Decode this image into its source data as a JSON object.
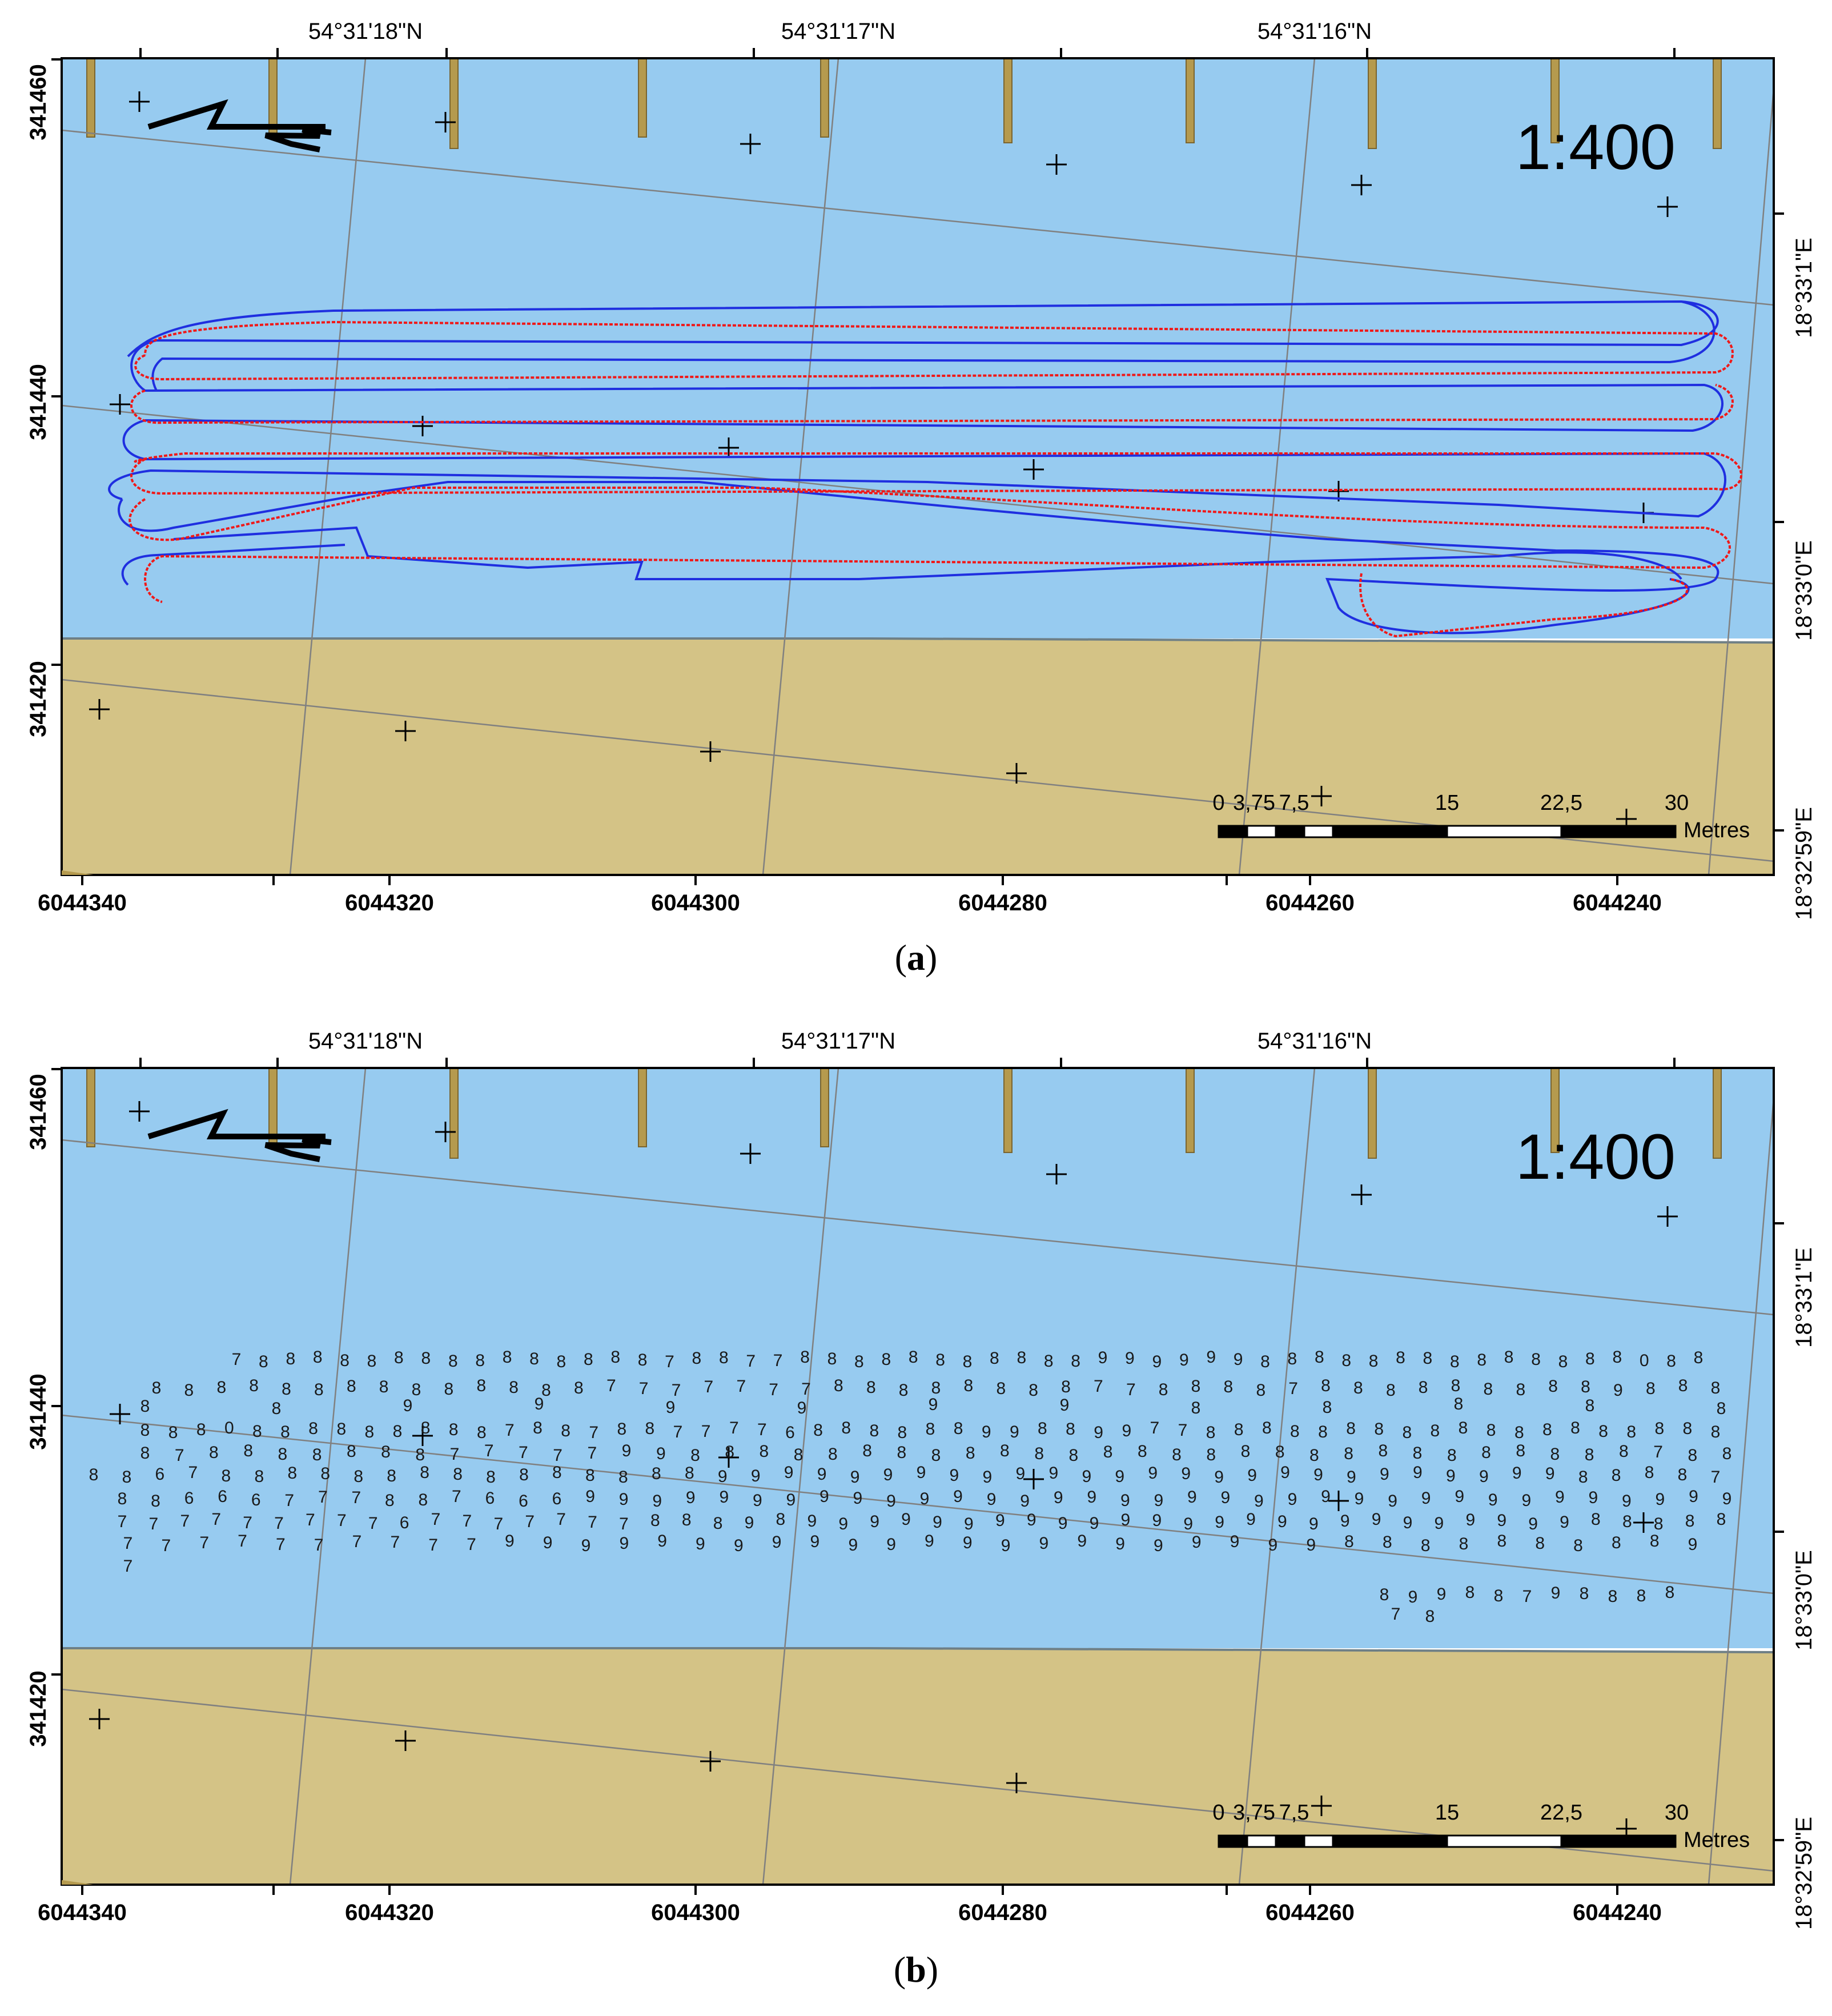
{
  "colors": {
    "water": "#97CBF0",
    "land": "#D4C386",
    "pier": "#B59A4E",
    "shoreline": "#6E7F86",
    "grid": "#808080",
    "track_blue": "#1F2FE0",
    "track_red": "#F01818"
  },
  "map": {
    "scale_text": "1:400",
    "lat_labels_top": [
      "54°31'18\"N",
      "54°31'17\"N",
      "54°31'16\"N"
    ],
    "easting_labels_bottom": [
      "6044340",
      "6044320",
      "6044300",
      "6044280",
      "6044260",
      "6044240"
    ],
    "northing_labels_left": [
      "341460",
      "341440",
      "341420"
    ],
    "lon_labels_right": [
      "18°33'1\"E",
      "18°33'0\"E",
      "18°32'59\"E"
    ],
    "scalebar": {
      "labels": [
        "0",
        "3,75",
        "7,5",
        "15",
        "22,5",
        "30"
      ],
      "unit": "Metres"
    },
    "north_arrow_icon": "north-arrow-icon"
  },
  "panels": [
    {
      "caption_letter": "a",
      "content": "survey-tracks"
    },
    {
      "caption_letter": "b",
      "content": "depth-soundings"
    }
  ]
}
